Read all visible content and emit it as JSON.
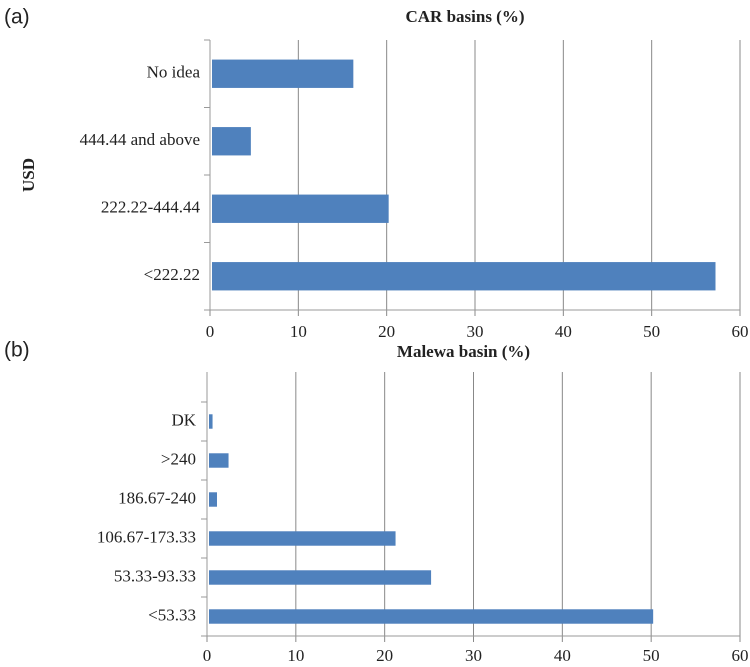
{
  "chart_data": [
    {
      "type": "bar",
      "orientation": "horizontal",
      "panel": "(a)",
      "title": "CAR basins (%)",
      "y_label": "USD",
      "categories": [
        "No idea",
        "444.44 and above",
        "222.22-444.44",
        "<222.22"
      ],
      "values": [
        16,
        4.4,
        20,
        57
      ],
      "color": "#4f81bd",
      "xlim": [
        0,
        60
      ],
      "xticks": [
        0,
        10,
        20,
        30,
        40,
        50,
        60
      ],
      "grid": true
    },
    {
      "type": "bar",
      "orientation": "horizontal",
      "panel": "(b)",
      "title": "Malewa basin (%)",
      "categories": [
        "DK",
        ">240",
        "186.67-240",
        "106.67-173.33",
        "53.33-93.33",
        "<53.33"
      ],
      "values": [
        0.4,
        2.2,
        0.9,
        21,
        25,
        50
      ],
      "color": "#4f81bd",
      "xlim": [
        0,
        60
      ],
      "xticks": [
        0,
        10,
        20,
        30,
        40,
        50,
        60
      ],
      "grid": true
    }
  ]
}
